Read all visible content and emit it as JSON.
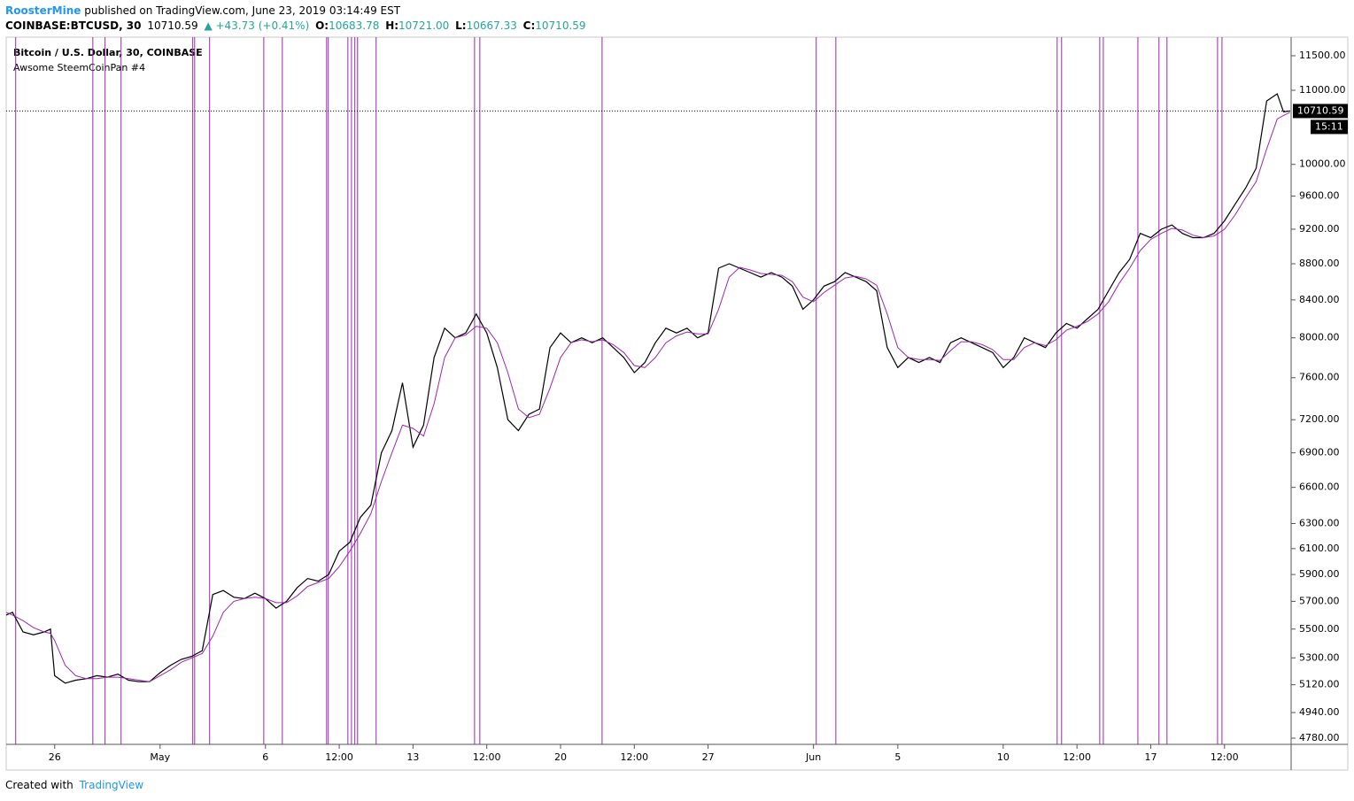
{
  "header": {
    "author": "RoosterMine",
    "published": "published on TradingView.com, June 23, 2019 03:14:49 EST",
    "symbol": "COINBASE:BTCUSD, 30",
    "price": "10710.59",
    "arrow": "▲",
    "change": "+43.73 (+0.41%)",
    "o_label": "O:",
    "open": "10683.78",
    "h_label": "H:",
    "high": "10721.00",
    "l_label": "L:",
    "low": "10667.33",
    "c_label": "C:",
    "close": "10710.59"
  },
  "footer": {
    "created": "Created with",
    "brand": "TradingView"
  },
  "chart_data": {
    "type": "line",
    "log_scale": true,
    "series": [
      {
        "name": "Bitcoin / U.S. Dollar, 30, COINBASE",
        "color": "#000000",
        "values": [
          5600,
          5620,
          5480,
          5460,
          5480,
          5500,
          5180,
          5130,
          5150,
          5160,
          5180,
          5170,
          5190,
          5150,
          5140,
          5140,
          5200,
          5250,
          5290,
          5310,
          5350,
          5750,
          5780,
          5730,
          5720,
          5760,
          5720,
          5650,
          5700,
          5800,
          5870,
          5850,
          5900,
          6080,
          6150,
          6350,
          6450,
          6900,
          7100,
          7550,
          6950,
          7150,
          7800,
          8100,
          8000,
          8050,
          8250,
          8050,
          7700,
          7200,
          7100,
          7250,
          7300,
          7900,
          8050,
          7950,
          8000,
          7950,
          8000,
          7900,
          7800,
          7650,
          7750,
          7950,
          8100,
          8050,
          8100,
          8000,
          8050,
          8750,
          8800,
          8750,
          8700,
          8650,
          8700,
          8650,
          8550,
          8300,
          8400,
          8550,
          8600,
          8700,
          8650,
          8600,
          8500,
          7900,
          7700,
          7800,
          7750,
          7800,
          7750,
          7950,
          8000,
          7950,
          7900,
          7850,
          7700,
          7800,
          8000,
          7950,
          7900,
          8050,
          8150,
          8100,
          8200,
          8300,
          8500,
          8700,
          8850,
          9150,
          9100,
          9200,
          9250,
          9150,
          9100,
          9100,
          9150,
          9300,
          9500,
          9700,
          9950,
          10850,
          10950,
          10700,
          10710.59
        ]
      },
      {
        "name": "Awsome SteemCoinPan #4",
        "color": "#9c27b0",
        "values": [
          5620,
          5600,
          5560,
          5510,
          5480,
          5470,
          5420,
          5250,
          5180,
          5160,
          5160,
          5170,
          5170,
          5160,
          5150,
          5140,
          5180,
          5220,
          5270,
          5300,
          5330,
          5450,
          5620,
          5700,
          5720,
          5730,
          5720,
          5690,
          5690,
          5740,
          5810,
          5840,
          5870,
          5960,
          6080,
          6220,
          6380,
          6650,
          6900,
          7150,
          7120,
          7050,
          7350,
          7800,
          8000,
          8030,
          8120,
          8100,
          7950,
          7650,
          7300,
          7220,
          7250,
          7500,
          7800,
          7950,
          7980,
          7960,
          7980,
          7930,
          7850,
          7720,
          7700,
          7800,
          7950,
          8020,
          8060,
          8040,
          8040,
          8300,
          8650,
          8760,
          8730,
          8690,
          8680,
          8670,
          8600,
          8430,
          8380,
          8480,
          8560,
          8640,
          8660,
          8630,
          8560,
          8250,
          7900,
          7800,
          7780,
          7780,
          7770,
          7870,
          7960,
          7960,
          7930,
          7880,
          7780,
          7780,
          7900,
          7950,
          7920,
          7980,
          8080,
          8120,
          8170,
          8250,
          8380,
          8580,
          8750,
          8950,
          9080,
          9150,
          9210,
          9190,
          9130,
          9100,
          9120,
          9200,
          9370,
          9580,
          9780,
          10200,
          10600,
          10650,
          10690
        ]
      }
    ],
    "x": [
      -2.3,
      -2,
      -1.5,
      -1,
      -0.5,
      -0.2,
      0,
      0.5,
      1,
      1.5,
      2,
      2.5,
      3,
      3.5,
      4,
      4.5,
      5,
      5.5,
      6,
      6.5,
      7,
      7.5,
      8,
      8.5,
      9,
      9.5,
      10,
      10.5,
      11,
      11.5,
      12,
      12.5,
      13,
      13.5,
      14,
      14.5,
      15,
      15.5,
      16,
      16.5,
      17,
      17.5,
      18,
      18.5,
      19,
      19.5,
      20,
      20.5,
      21,
      21.5,
      22,
      22.5,
      23,
      23.5,
      24,
      24.5,
      25,
      25.5,
      26,
      26.5,
      27,
      27.5,
      28,
      28.5,
      29,
      29.5,
      30,
      30.5,
      31,
      31.5,
      32,
      32.5,
      33,
      33.5,
      34,
      34.5,
      35,
      35.5,
      36,
      36.5,
      37,
      37.5,
      38,
      38.5,
      39,
      39.5,
      40,
      40.5,
      41,
      41.5,
      42,
      42.5,
      43,
      43.5,
      44,
      44.5,
      45,
      45.5,
      46,
      46.5,
      47,
      47.5,
      48,
      48.5,
      49,
      49.5,
      50,
      50.5,
      51,
      51.5,
      52,
      52.5,
      53,
      53.5,
      54,
      54.5,
      55,
      55.5,
      56,
      56.5,
      57,
      57.5,
      58,
      58.3,
      58.6
    ],
    "xlim": [
      -2.3,
      58.66
    ],
    "xticks": [
      {
        "value": 0,
        "label": "26"
      },
      {
        "value": 5,
        "label": "May"
      },
      {
        "value": 10,
        "label": "6"
      },
      {
        "value": 13.5,
        "label": "12:00"
      },
      {
        "value": 17,
        "label": "13"
      },
      {
        "value": 20.5,
        "label": "12:00"
      },
      {
        "value": 24,
        "label": "20"
      },
      {
        "value": 27.5,
        "label": "12:00"
      },
      {
        "value": 31,
        "label": "27"
      },
      {
        "value": 36,
        "label": "Jun"
      },
      {
        "value": 40,
        "label": "5"
      },
      {
        "value": 45,
        "label": "10"
      },
      {
        "value": 48.5,
        "label": "12:00"
      },
      {
        "value": 52,
        "label": "17"
      },
      {
        "value": 55.5,
        "label": "12:00"
      }
    ],
    "ylim": [
      4742,
      11778
    ],
    "yticks": [
      {
        "value": 11500,
        "label": "11500.00"
      },
      {
        "value": 11000,
        "label": "11000.00"
      },
      {
        "value": 10000,
        "label": "10000.00"
      },
      {
        "value": 9600,
        "label": "9600.00"
      },
      {
        "value": 9200,
        "label": "9200.00"
      },
      {
        "value": 8800,
        "label": "8800.00"
      },
      {
        "value": 8400,
        "label": "8400.00"
      },
      {
        "value": 8000,
        "label": "8000.00"
      },
      {
        "value": 7600,
        "label": "7600.00"
      },
      {
        "value": 7200,
        "label": "7200.00"
      },
      {
        "value": 6900,
        "label": "6900.00"
      },
      {
        "value": 6600,
        "label": "6600.00"
      },
      {
        "value": 6300,
        "label": "6300.00"
      },
      {
        "value": 6100,
        "label": "6100.00"
      },
      {
        "value": 5900,
        "label": "5900.00"
      },
      {
        "value": 5700,
        "label": "5700.00"
      },
      {
        "value": 5500,
        "label": "5500.00"
      },
      {
        "value": 5300,
        "label": "5300.00"
      },
      {
        "value": 5120,
        "label": "5120.00"
      },
      {
        "value": 4940,
        "label": "4940.00"
      },
      {
        "value": 4780,
        "label": "4780.00"
      }
    ],
    "vertical_lines": {
      "color": "#9c27b0",
      "x": [
        -1.85,
        1.81,
        2.39,
        3.15,
        6.55,
        6.64,
        7.35,
        9.92,
        10.8,
        12.9,
        12.98,
        13.91,
        14.08,
        14.24,
        14.37,
        15.25,
        19.92,
        20.17,
        25.97,
        36.13,
        37.06,
        47.56,
        47.77,
        49.58,
        49.75,
        51.39,
        52.39,
        52.77,
        55.17,
        55.38
      ]
    },
    "last_price": 10710.59,
    "countdown": "15:11"
  }
}
